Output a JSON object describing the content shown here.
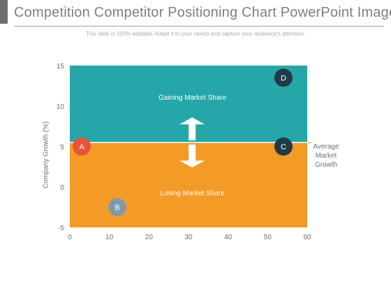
{
  "header": {
    "title": "Competition Competitor Positioning Chart PowerPoint Images",
    "subtitle": "This slide is 100% editable. Adapt it to your needs and capture your audience's attention."
  },
  "colors": {
    "upper_zone": "#25a6a9",
    "lower_zone": "#f49a27",
    "title_accent": "#6d6d6d",
    "point_A": "#e8533a",
    "point_B": "#7f9aab",
    "point_C": "#1f3b47",
    "point_D": "#1f3b47"
  },
  "chart_data": {
    "type": "scatter",
    "xlim": [
      0,
      60
    ],
    "ylim": [
      -5,
      15
    ],
    "x_ticks": [
      0,
      10,
      20,
      30,
      40,
      50,
      60
    ],
    "y_ticks": [
      15,
      10,
      5,
      0,
      -5
    ],
    "xlabel": "",
    "ylabel": "Company Growth (%)",
    "average_line": {
      "y": 5.5,
      "label": "Average Market Growth"
    },
    "zones": [
      {
        "label": "Gaining Market Share",
        "from": 5.5,
        "to": 15,
        "color": "#25a6a9"
      },
      {
        "label": "Losing Market Share",
        "from": -5,
        "to": 5.5,
        "color": "#f49a27"
      }
    ],
    "arrows": {
      "up": "arrow-up-icon",
      "down": "arrow-down-icon"
    },
    "points": [
      {
        "label": "A",
        "x": 3,
        "y": 5,
        "color": "#e8533a"
      },
      {
        "label": "B",
        "x": 12,
        "y": -2.5,
        "color": "#7f9aab"
      },
      {
        "label": "C",
        "x": 54,
        "y": 5,
        "color": "#1f3b47"
      },
      {
        "label": "D",
        "x": 54,
        "y": 13.5,
        "color": "#1f3b47"
      }
    ]
  }
}
